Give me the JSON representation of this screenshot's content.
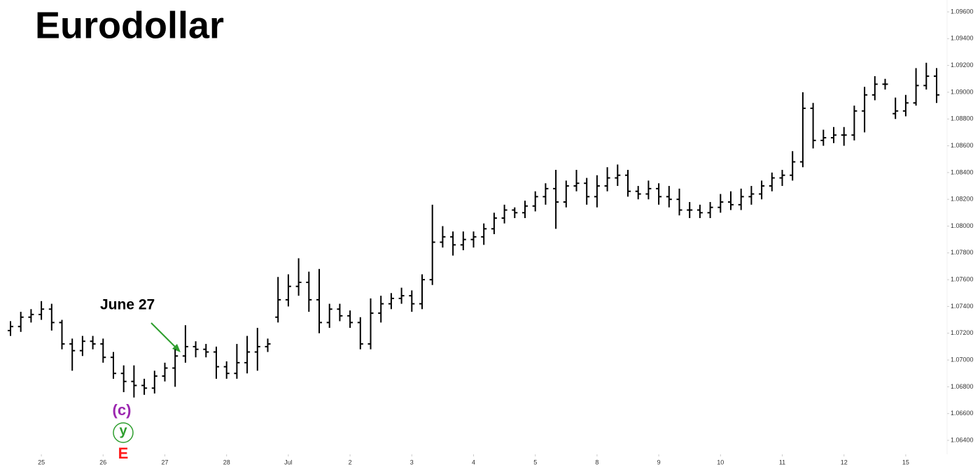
{
  "chart_data": {
    "type": "ohlc",
    "title": "Eurodollar",
    "annotations": [
      {
        "text": "June 27"
      },
      {
        "text": "(c)",
        "color": "#9c27b0"
      },
      {
        "text": "y",
        "color": "#2e9e2e"
      },
      {
        "text": "E",
        "color": "#ff1a1a"
      }
    ],
    "color": "#000000",
    "open": [
      1.0722,
      1.0725,
      1.0732,
      1.0734,
      1.0738,
      1.0728,
      1.0712,
      1.0707,
      1.0714,
      1.0712,
      1.0702,
      1.069,
      1.0684,
      1.0681,
      1.0679,
      1.0688,
      1.0694,
      1.0703,
      1.071,
      1.0708,
      1.0706,
      1.0695,
      1.069,
      1.0698,
      1.0706,
      1.071,
      1.0732,
      1.0745,
      1.0755,
      1.0758,
      1.0745,
      1.0728,
      1.0738,
      1.0733,
      1.0728,
      1.0712,
      1.0735,
      1.0742,
      1.0746,
      1.0748,
      1.0742,
      1.076,
      1.0788,
      1.0792,
      1.0786,
      1.079,
      1.0792,
      1.0798,
      1.0806,
      1.0812,
      1.081,
      1.0815,
      1.0822,
      1.0828,
      1.0818,
      1.083,
      1.0832,
      1.0822,
      1.083,
      1.0836,
      1.0838,
      1.0826,
      1.0824,
      1.0828,
      1.0822,
      1.082,
      1.0812,
      1.0812,
      1.081,
      1.0814,
      1.0818,
      1.0816,
      1.0822,
      1.0824,
      1.083,
      1.0836,
      1.0838,
      1.0848,
      1.0888,
      1.0864,
      1.0866,
      1.0868,
      1.0868,
      1.0886,
      1.0898,
      1.0906,
      1.0884,
      1.0886,
      1.0892,
      1.0905,
      1.0912
    ],
    "high": [
      1.0729,
      1.0736,
      1.0738,
      1.0744,
      1.0742,
      1.073,
      1.0716,
      1.0718,
      1.0718,
      1.0716,
      1.0706,
      1.0696,
      1.0696,
      1.0686,
      1.0692,
      1.0698,
      1.0708,
      1.0726,
      1.0714,
      1.0712,
      1.071,
      1.0699,
      1.0712,
      1.0718,
      1.0724,
      1.0716,
      1.0762,
      1.0764,
      1.0776,
      1.0766,
      1.0768,
      1.0742,
      1.0742,
      1.0737,
      1.0732,
      1.0746,
      1.0748,
      1.075,
      1.0754,
      1.0752,
      1.0764,
      1.0816,
      1.08,
      1.0796,
      1.0796,
      1.0796,
      1.0802,
      1.081,
      1.0816,
      1.0814,
      1.0819,
      1.0826,
      1.0832,
      1.0842,
      1.0834,
      1.0842,
      1.0836,
      1.0838,
      1.0844,
      1.0846,
      1.0842,
      1.083,
      1.0834,
      1.0832,
      1.083,
      1.0828,
      1.0818,
      1.0816,
      1.0818,
      1.0824,
      1.0826,
      1.0828,
      1.083,
      1.0834,
      1.084,
      1.0842,
      1.0856,
      1.09,
      1.0892,
      1.0872,
      1.0874,
      1.0874,
      1.089,
      1.0904,
      1.0912,
      1.091,
      1.0896,
      1.0898,
      1.0918,
      1.0922,
      1.0918
    ],
    "low": [
      1.0718,
      1.0721,
      1.0728,
      1.073,
      1.0722,
      1.0708,
      1.0692,
      1.0703,
      1.0708,
      1.0698,
      1.0686,
      1.0676,
      1.0672,
      1.0674,
      1.0675,
      1.0684,
      1.068,
      1.0698,
      1.0702,
      1.0702,
      1.0686,
      1.0686,
      1.0686,
      1.069,
      1.0692,
      1.0706,
      1.0728,
      1.074,
      1.0748,
      1.0736,
      1.072,
      1.0724,
      1.0729,
      1.0724,
      1.0708,
      1.0708,
      1.0728,
      1.0738,
      1.0742,
      1.0736,
      1.0738,
      1.0756,
      1.0784,
      1.0778,
      1.0782,
      1.0784,
      1.0786,
      1.0794,
      1.0802,
      1.0806,
      1.0806,
      1.0811,
      1.0816,
      1.0798,
      1.0814,
      1.0826,
      1.0816,
      1.0814,
      1.0826,
      1.083,
      1.0822,
      1.082,
      1.082,
      1.0816,
      1.0814,
      1.0808,
      1.0806,
      1.0806,
      1.0806,
      1.081,
      1.0812,
      1.0812,
      1.0816,
      1.082,
      1.0826,
      1.083,
      1.0834,
      1.0844,
      1.0858,
      1.086,
      1.0862,
      1.086,
      1.0864,
      1.087,
      1.0894,
      1.0902,
      1.088,
      1.0882,
      1.089,
      1.0902,
      1.0892
    ],
    "close": [
      1.0725,
      1.0732,
      1.0734,
      1.0738,
      1.0728,
      1.0712,
      1.0707,
      1.0714,
      1.0712,
      1.0702,
      1.069,
      1.0684,
      1.0681,
      1.0679,
      1.0688,
      1.0694,
      1.0703,
      1.071,
      1.0708,
      1.0706,
      1.0695,
      1.069,
      1.0698,
      1.0706,
      1.071,
      1.0712,
      1.0745,
      1.0755,
      1.0758,
      1.0745,
      1.0728,
      1.0738,
      1.0733,
      1.0728,
      1.0712,
      1.0735,
      1.0742,
      1.0746,
      1.0748,
      1.0742,
      1.076,
      1.0788,
      1.0792,
      1.0786,
      1.079,
      1.0792,
      1.0798,
      1.0806,
      1.0812,
      1.081,
      1.0815,
      1.0822,
      1.0828,
      1.0818,
      1.083,
      1.0832,
      1.0822,
      1.083,
      1.0836,
      1.0838,
      1.0826,
      1.0824,
      1.0828,
      1.0822,
      1.082,
      1.0812,
      1.0812,
      1.081,
      1.0814,
      1.0818,
      1.0816,
      1.0822,
      1.0824,
      1.083,
      1.0836,
      1.0838,
      1.0848,
      1.0888,
      1.0864,
      1.0866,
      1.0868,
      1.0868,
      1.0886,
      1.0898,
      1.0906,
      1.0906,
      1.0886,
      1.0892,
      1.0905,
      1.0912,
      1.0898
    ],
    "xlim": [
      -1,
      91
    ],
    "xticks": [
      {
        "value": 3,
        "label": "25"
      },
      {
        "value": 9,
        "label": "26"
      },
      {
        "value": 15,
        "label": "27"
      },
      {
        "value": 21,
        "label": "28"
      },
      {
        "value": 27,
        "label": "Jul"
      },
      {
        "value": 33,
        "label": "2"
      },
      {
        "value": 39,
        "label": "3"
      },
      {
        "value": 45,
        "label": "4"
      },
      {
        "value": 51,
        "label": "5"
      },
      {
        "value": 57,
        "label": "8"
      },
      {
        "value": 63,
        "label": "9"
      },
      {
        "value": 69,
        "label": "10"
      },
      {
        "value": 75,
        "label": "11"
      },
      {
        "value": 81,
        "label": "12"
      },
      {
        "value": 87,
        "label": "15"
      }
    ],
    "ylim": [
      1.064,
      1.096
    ],
    "yticks": [
      {
        "value": 1.064,
        "label": "1.06400"
      },
      {
        "value": 1.066,
        "label": "1.06600"
      },
      {
        "value": 1.068,
        "label": "1.06800"
      },
      {
        "value": 1.07,
        "label": "1.07000"
      },
      {
        "value": 1.072,
        "label": "1.07200"
      },
      {
        "value": 1.074,
        "label": "1.07400"
      },
      {
        "value": 1.076,
        "label": "1.07600"
      },
      {
        "value": 1.078,
        "label": "1.07800"
      },
      {
        "value": 1.08,
        "label": "1.08000"
      },
      {
        "value": 1.082,
        "label": "1.08200"
      },
      {
        "value": 1.084,
        "label": "1.08400"
      },
      {
        "value": 1.086,
        "label": "1.08600"
      },
      {
        "value": 1.088,
        "label": "1.08800"
      },
      {
        "value": 1.09,
        "label": "1.09000"
      },
      {
        "value": 1.092,
        "label": "1.09200"
      },
      {
        "value": 1.094,
        "label": "1.09400"
      },
      {
        "value": 1.096,
        "label": "1.09600"
      }
    ],
    "grid": false
  }
}
